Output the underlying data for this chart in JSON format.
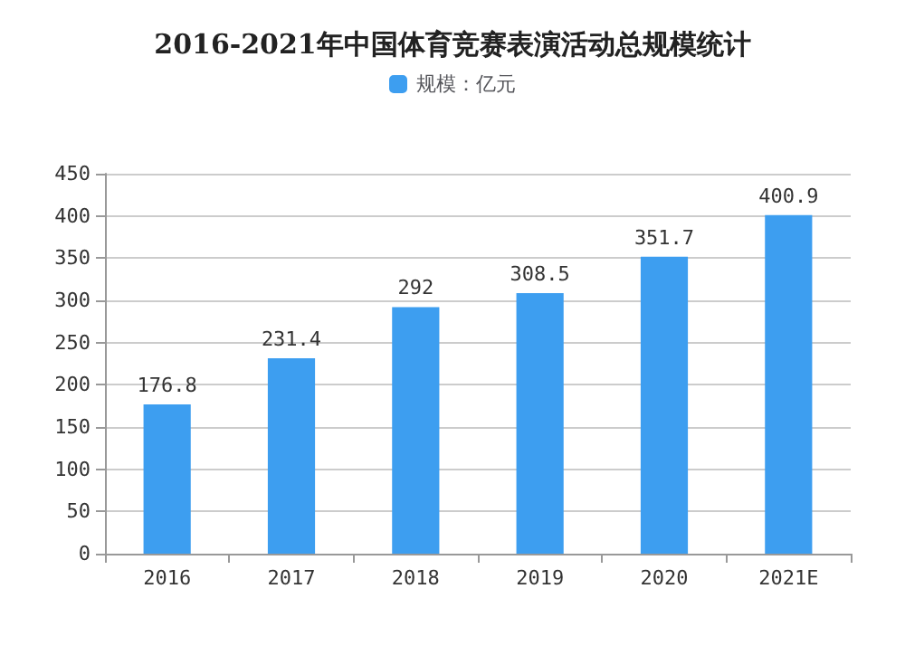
{
  "chart_data": {
    "type": "bar",
    "title": "2016-2021年中国体育竞赛表演活动总规模统计",
    "categories": [
      "2016",
      "2017",
      "2018",
      "2019",
      "2020",
      "2021E"
    ],
    "series": [
      {
        "name": "规模：亿元",
        "color": "#3d9ef0",
        "values": [
          176.8,
          231.4,
          292,
          308.5,
          351.7,
          400.9
        ]
      }
    ],
    "ylim": [
      0,
      450
    ],
    "yticks": [
      0,
      50,
      100,
      150,
      200,
      250,
      300,
      350,
      400,
      450
    ],
    "grid": "y",
    "legend": "top",
    "data_labels": true
  }
}
